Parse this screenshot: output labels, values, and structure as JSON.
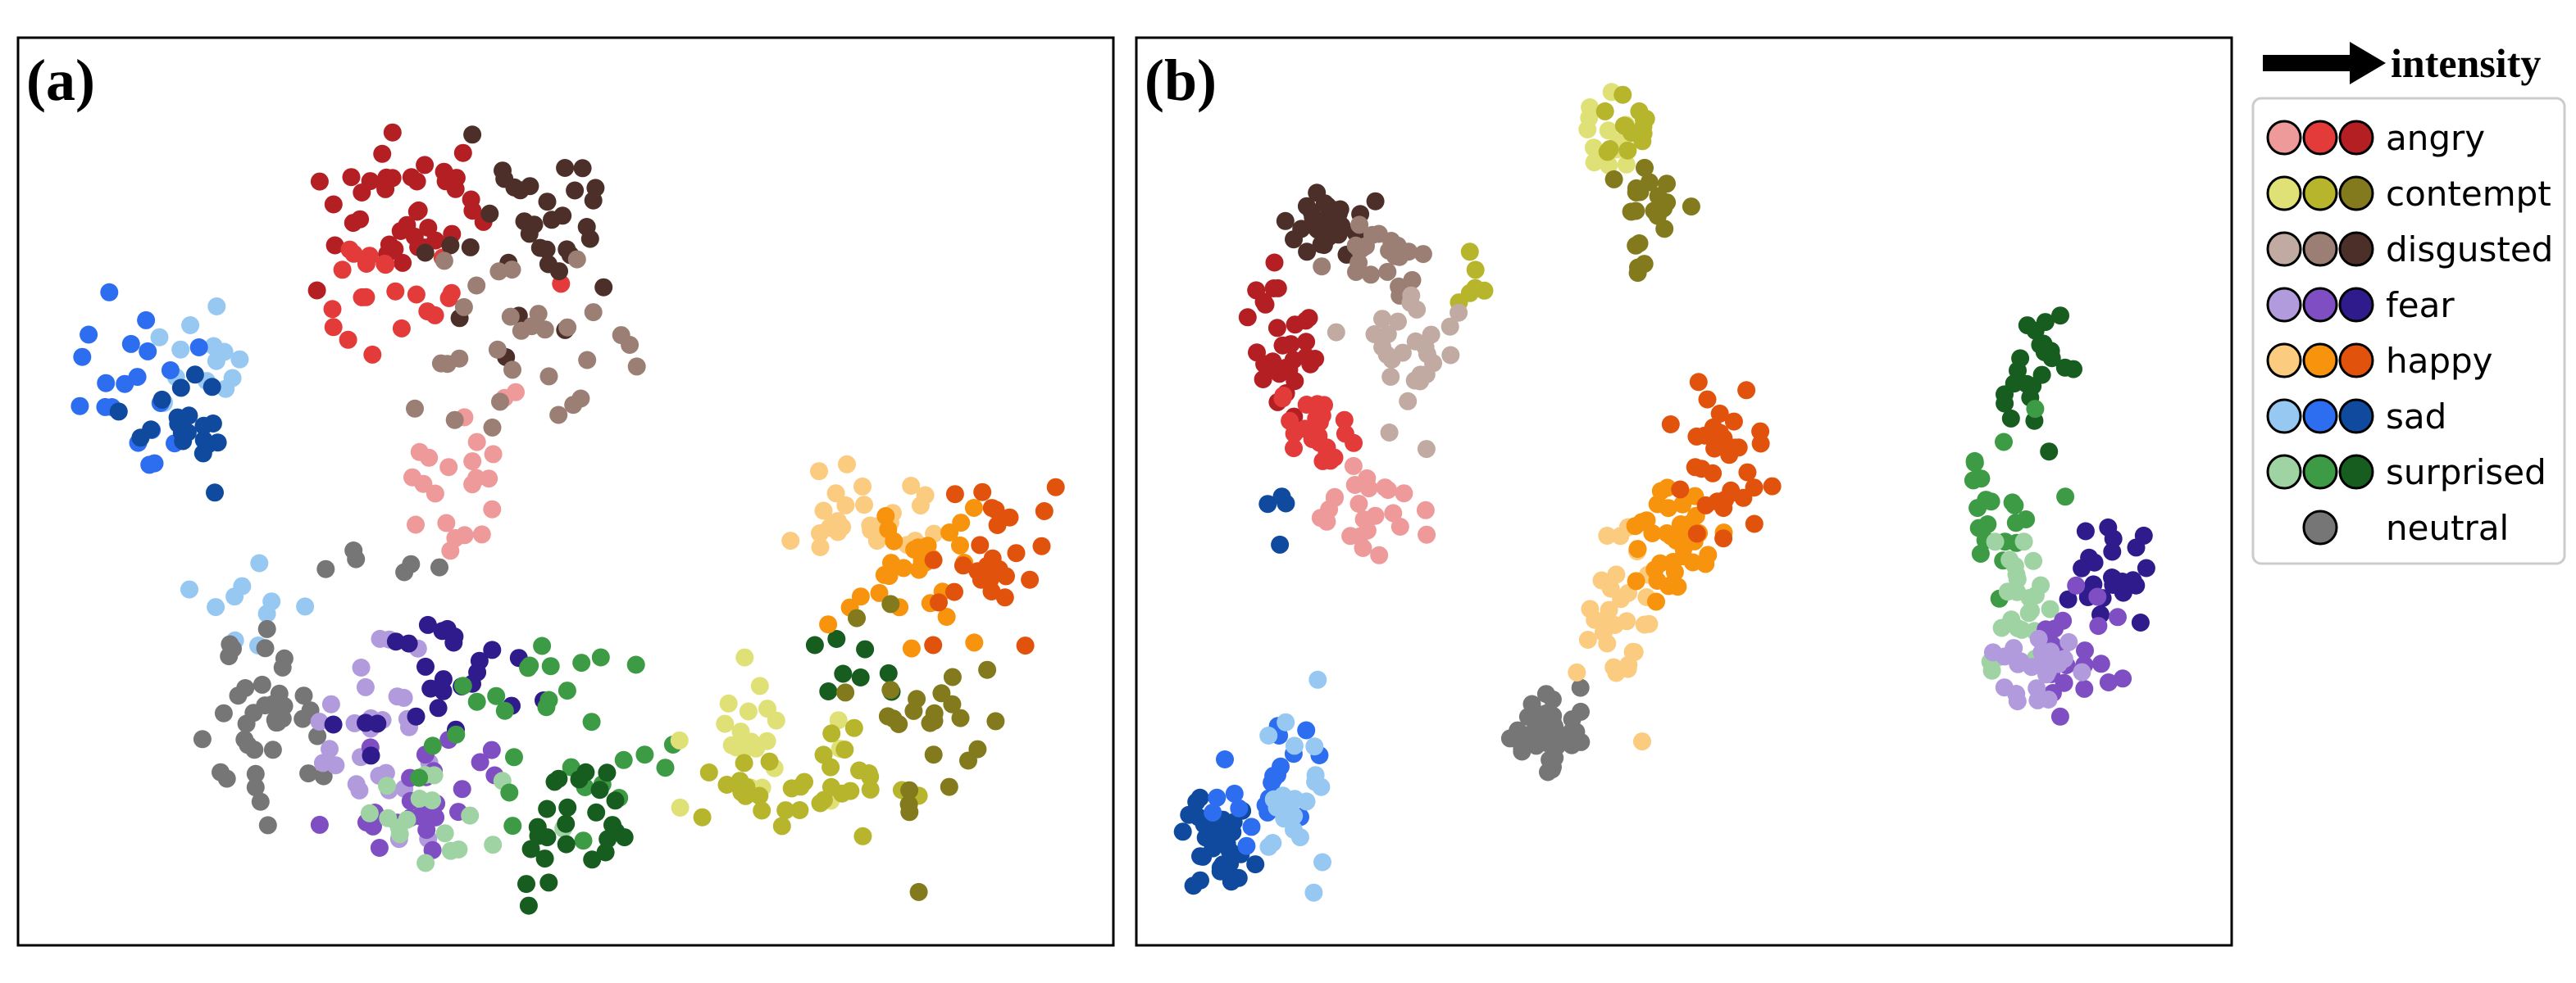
{
  "chart_data": [
    {
      "type": "scatter",
      "panel_label": "(a)",
      "xlim": [
        0,
        100
      ],
      "ylim": [
        0,
        100
      ],
      "grid": false,
      "clusters": [
        {
          "emotion": "angry",
          "level": 3,
          "cx": 35,
          "cy": 82,
          "sx": 4.0,
          "sy": 4.0,
          "n": 40
        },
        {
          "emotion": "angry",
          "level": 2,
          "cx": 35,
          "cy": 74,
          "sx": 4.5,
          "sy": 3.5,
          "n": 22
        },
        {
          "emotion": "angry",
          "level": 1,
          "cx": 40,
          "cy": 52,
          "sx": 3.0,
          "sy": 5.0,
          "n": 22
        },
        {
          "emotion": "disgusted",
          "level": 3,
          "cx": 46,
          "cy": 80,
          "sx": 4.0,
          "sy": 5.0,
          "n": 35
        },
        {
          "emotion": "disgusted",
          "level": 2,
          "cx": 48,
          "cy": 66,
          "sx": 5.0,
          "sy": 6.0,
          "n": 30
        },
        {
          "emotion": "sad",
          "level": 1,
          "cx": 16,
          "cy": 66,
          "sx": 2.5,
          "sy": 4.0,
          "n": 14
        },
        {
          "emotion": "sad",
          "level": 2,
          "cx": 9,
          "cy": 63,
          "sx": 3.0,
          "sy": 5.0,
          "n": 20
        },
        {
          "emotion": "sad",
          "level": 3,
          "cx": 14,
          "cy": 57,
          "sx": 3.0,
          "sy": 4.0,
          "n": 20
        },
        {
          "emotion": "sad",
          "level": 1,
          "cx": 21,
          "cy": 40,
          "sx": 3.0,
          "sy": 4.0,
          "n": 10
        },
        {
          "emotion": "neutral",
          "level": 0,
          "cx": 22,
          "cy": 25,
          "sx": 2.5,
          "sy": 6.0,
          "n": 38
        },
        {
          "emotion": "neutral",
          "level": 0,
          "cx": 34,
          "cy": 42,
          "sx": 2.5,
          "sy": 1.5,
          "n": 6
        },
        {
          "emotion": "fear",
          "level": 1,
          "cx": 32,
          "cy": 23,
          "sx": 3.0,
          "sy": 6.0,
          "n": 28
        },
        {
          "emotion": "fear",
          "level": 2,
          "cx": 36,
          "cy": 15,
          "sx": 3.0,
          "sy": 5.0,
          "n": 28
        },
        {
          "emotion": "fear",
          "level": 3,
          "cx": 40,
          "cy": 29,
          "sx": 5.0,
          "sy": 4.0,
          "n": 26
        },
        {
          "emotion": "surprised",
          "level": 1,
          "cx": 38,
          "cy": 13,
          "sx": 4.0,
          "sy": 4.0,
          "n": 18
        },
        {
          "emotion": "surprised",
          "level": 2,
          "cx": 50,
          "cy": 22,
          "sx": 6.0,
          "sy": 6.0,
          "n": 30
        },
        {
          "emotion": "surprised",
          "level": 3,
          "cx": 51,
          "cy": 12,
          "sx": 5.0,
          "sy": 4.0,
          "n": 26
        },
        {
          "emotion": "surprised",
          "level": 3,
          "cx": 77,
          "cy": 30,
          "sx": 2.5,
          "sy": 3.5,
          "n": 8
        },
        {
          "emotion": "happy",
          "level": 1,
          "cx": 78,
          "cy": 47,
          "sx": 4.0,
          "sy": 3.0,
          "n": 30
        },
        {
          "emotion": "happy",
          "level": 2,
          "cx": 84,
          "cy": 41,
          "sx": 3.5,
          "sy": 4.0,
          "n": 30
        },
        {
          "emotion": "happy",
          "level": 3,
          "cx": 90,
          "cy": 43,
          "sx": 3.5,
          "sy": 4.0,
          "n": 28
        },
        {
          "emotion": "contempt",
          "level": 1,
          "cx": 68,
          "cy": 22,
          "sx": 4.0,
          "sy": 5.0,
          "n": 22
        },
        {
          "emotion": "contempt",
          "level": 2,
          "cx": 73,
          "cy": 16,
          "sx": 5.0,
          "sy": 3.0,
          "n": 34
        },
        {
          "emotion": "contempt",
          "level": 3,
          "cx": 83,
          "cy": 22,
          "sx": 4.0,
          "sy": 7.0,
          "n": 26
        }
      ]
    },
    {
      "type": "scatter",
      "panel_label": "(b)",
      "xlim": [
        0,
        100
      ],
      "ylim": [
        0,
        100
      ],
      "grid": false,
      "clusters": [
        {
          "emotion": "contempt",
          "level": 1,
          "cx": 42,
          "cy": 91,
          "sx": 1.3,
          "sy": 2.0,
          "n": 14
        },
        {
          "emotion": "contempt",
          "level": 2,
          "cx": 45,
          "cy": 92,
          "sx": 1.5,
          "sy": 2.0,
          "n": 14
        },
        {
          "emotion": "contempt",
          "level": 3,
          "cx": 47,
          "cy": 83,
          "sx": 1.8,
          "sy": 3.5,
          "n": 22
        },
        {
          "emotion": "contempt",
          "level": 2,
          "cx": 30,
          "cy": 73,
          "sx": 1.5,
          "sy": 1.5,
          "n": 6
        },
        {
          "emotion": "disgusted",
          "level": 3,
          "cx": 16,
          "cy": 81,
          "sx": 1.8,
          "sy": 2.0,
          "n": 32
        },
        {
          "emotion": "disgusted",
          "level": 2,
          "cx": 20,
          "cy": 76,
          "sx": 2.5,
          "sy": 2.5,
          "n": 22
        },
        {
          "emotion": "disgusted",
          "level": 1,
          "cx": 24,
          "cy": 67,
          "sx": 2.5,
          "sy": 4.0,
          "n": 28
        },
        {
          "emotion": "angry",
          "level": 3,
          "cx": 12,
          "cy": 67,
          "sx": 1.8,
          "sy": 3.0,
          "n": 32
        },
        {
          "emotion": "angry",
          "level": 2,
          "cx": 15,
          "cy": 57,
          "sx": 2.0,
          "sy": 3.0,
          "n": 24
        },
        {
          "emotion": "angry",
          "level": 1,
          "cx": 20,
          "cy": 48,
          "sx": 2.5,
          "sy": 2.5,
          "n": 24
        },
        {
          "emotion": "sad",
          "level": 3,
          "cx": 12,
          "cy": 47,
          "sx": 0.6,
          "sy": 2.5,
          "n": 4
        },
        {
          "emotion": "sad",
          "level": 3,
          "cx": 6,
          "cy": 11,
          "sx": 1.8,
          "sy": 3.0,
          "n": 34
        },
        {
          "emotion": "sad",
          "level": 2,
          "cx": 10,
          "cy": 17,
          "sx": 2.0,
          "sy": 3.5,
          "n": 22
        },
        {
          "emotion": "sad",
          "level": 1,
          "cx": 14,
          "cy": 15,
          "sx": 2.0,
          "sy": 4.0,
          "n": 22
        },
        {
          "emotion": "neutral",
          "level": 0,
          "cx": 37,
          "cy": 22,
          "sx": 1.5,
          "sy": 2.0,
          "n": 42
        },
        {
          "emotion": "happy",
          "level": 1,
          "cx": 44,
          "cy": 36,
          "sx": 2.0,
          "sy": 5.0,
          "n": 30
        },
        {
          "emotion": "happy",
          "level": 2,
          "cx": 49,
          "cy": 45,
          "sx": 2.0,
          "sy": 3.0,
          "n": 36
        },
        {
          "emotion": "happy",
          "level": 3,
          "cx": 54,
          "cy": 54,
          "sx": 2.0,
          "sy": 4.5,
          "n": 36
        },
        {
          "emotion": "surprised",
          "level": 3,
          "cx": 83,
          "cy": 62,
          "sx": 1.5,
          "sy": 4.0,
          "n": 24
        },
        {
          "emotion": "surprised",
          "level": 2,
          "cx": 80,
          "cy": 48,
          "sx": 1.8,
          "sy": 5.0,
          "n": 22
        },
        {
          "emotion": "surprised",
          "level": 1,
          "cx": 82,
          "cy": 38,
          "sx": 2.0,
          "sy": 4.0,
          "n": 24
        },
        {
          "emotion": "fear",
          "level": 3,
          "cx": 90,
          "cy": 42,
          "sx": 2.0,
          "sy": 4.0,
          "n": 24
        },
        {
          "emotion": "fear",
          "level": 2,
          "cx": 87,
          "cy": 32,
          "sx": 2.0,
          "sy": 3.5,
          "n": 20
        },
        {
          "emotion": "fear",
          "level": 1,
          "cx": 83,
          "cy": 29,
          "sx": 2.0,
          "sy": 2.5,
          "n": 24
        }
      ]
    }
  ],
  "legend": {
    "title": "intensity",
    "placement": "right",
    "entries": [
      {
        "label": "angry",
        "colors": [
          "#ee9a9a",
          "#e33a3a",
          "#b41f24"
        ]
      },
      {
        "label": "contempt",
        "colors": [
          "#dfe176",
          "#b6b52c",
          "#827a1c"
        ]
      },
      {
        "label": "disgusted",
        "colors": [
          "#c1aaa2",
          "#9b7f74",
          "#4d2f29"
        ]
      },
      {
        "label": "fear",
        "colors": [
          "#b19bdc",
          "#7e4ec2",
          "#2f1b8c"
        ]
      },
      {
        "label": "happy",
        "colors": [
          "#fbcb80",
          "#f7930c",
          "#e1530d"
        ]
      },
      {
        "label": "sad",
        "colors": [
          "#96c8f2",
          "#2d6df0",
          "#0f4a9e"
        ]
      },
      {
        "label": "surprised",
        "colors": [
          "#9fd3a3",
          "#3e9b45",
          "#175d1f"
        ]
      },
      {
        "label": "neutral",
        "colors": [
          "#767676"
        ]
      }
    ]
  }
}
